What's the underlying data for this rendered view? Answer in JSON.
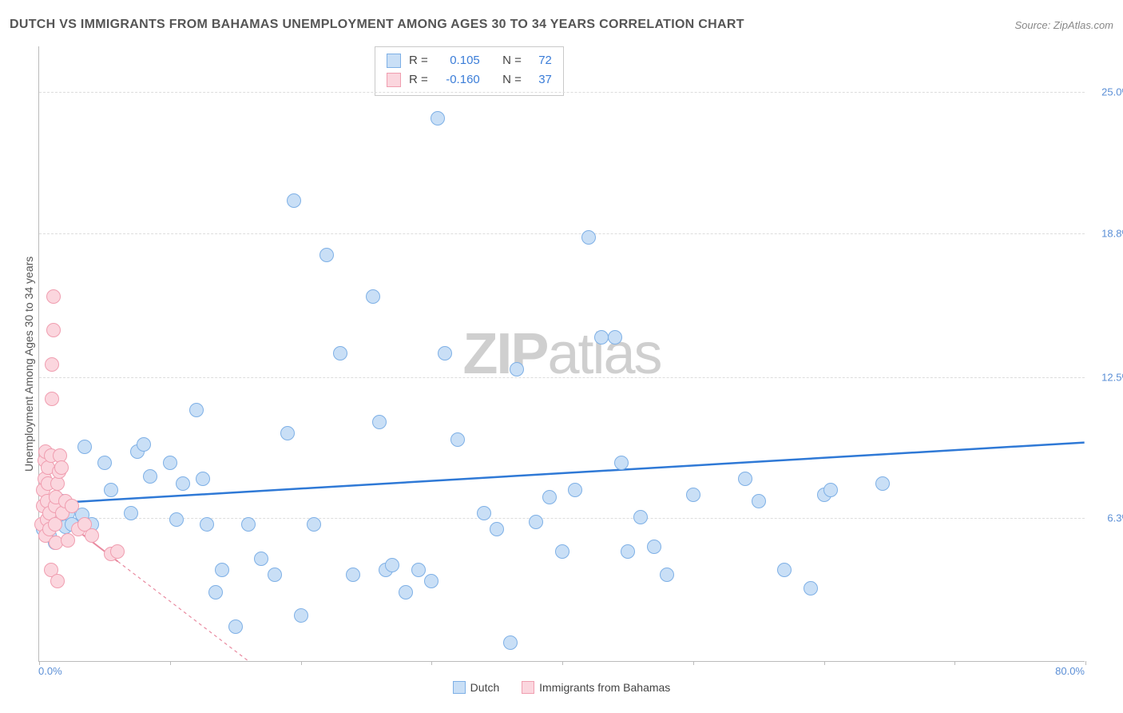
{
  "title": "DUTCH VS IMMIGRANTS FROM BAHAMAS UNEMPLOYMENT AMONG AGES 30 TO 34 YEARS CORRELATION CHART",
  "source": "Source: ZipAtlas.com",
  "watermark": {
    "bold": "ZIP",
    "rest": "atlas"
  },
  "y_axis_label": "Unemployment Among Ages 30 to 34 years",
  "chart": {
    "type": "scatter",
    "xlim": [
      0,
      80
    ],
    "ylim": [
      0,
      27
    ],
    "x_start_label": "0.0%",
    "x_end_label": "80.0%",
    "x_ticks": [
      0,
      10,
      20,
      30,
      40,
      50,
      60,
      70,
      80
    ],
    "y_gridlines": [
      {
        "val": 6.3,
        "label": "6.3%"
      },
      {
        "val": 12.5,
        "label": "12.5%"
      },
      {
        "val": 18.8,
        "label": "18.8%"
      },
      {
        "val": 25.0,
        "label": "25.0%"
      }
    ],
    "background_color": "#ffffff",
    "grid_color": "#dddddd",
    "point_radius": 9,
    "series": [
      {
        "name": "Dutch",
        "fill": "#c9dff6",
        "stroke": "#7eb0e6",
        "trend_color": "#2f79d6",
        "trend_width": 2.5,
        "trend_dash": "none",
        "r_value": "0.105",
        "n_value": "72",
        "trend": {
          "x1": 0,
          "y1": 6.9,
          "x2": 80,
          "y2": 9.6
        },
        "points": [
          [
            0.3,
            5.8
          ],
          [
            0.5,
            6.0
          ],
          [
            0.8,
            5.5
          ],
          [
            1.0,
            6.8
          ],
          [
            1.2,
            5.2
          ],
          [
            1.5,
            6.2
          ],
          [
            1.8,
            7.0
          ],
          [
            2.0,
            5.9
          ],
          [
            2.2,
            6.5
          ],
          [
            2.5,
            6.0
          ],
          [
            3.3,
            6.4
          ],
          [
            3.5,
            9.4
          ],
          [
            4.0,
            6.0
          ],
          [
            5.0,
            8.7
          ],
          [
            5.5,
            7.5
          ],
          [
            7.0,
            6.5
          ],
          [
            7.5,
            9.2
          ],
          [
            8.0,
            9.5
          ],
          [
            8.5,
            8.1
          ],
          [
            10.0,
            8.7
          ],
          [
            10.5,
            6.2
          ],
          [
            11.0,
            7.8
          ],
          [
            12.0,
            11.0
          ],
          [
            12.5,
            8.0
          ],
          [
            12.8,
            6.0
          ],
          [
            13.5,
            3.0
          ],
          [
            14.0,
            4.0
          ],
          [
            15.0,
            1.5
          ],
          [
            16.0,
            6.0
          ],
          [
            17.0,
            4.5
          ],
          [
            18.0,
            3.8
          ],
          [
            19.0,
            10.0
          ],
          [
            19.5,
            20.2
          ],
          [
            20.0,
            2.0
          ],
          [
            21.0,
            6.0
          ],
          [
            22.0,
            17.8
          ],
          [
            23.0,
            13.5
          ],
          [
            24.0,
            3.8
          ],
          [
            25.5,
            16.0
          ],
          [
            26.0,
            10.5
          ],
          [
            26.5,
            4.0
          ],
          [
            27.0,
            4.2
          ],
          [
            28.0,
            3.0
          ],
          [
            29.0,
            4.0
          ],
          [
            30.0,
            3.5
          ],
          [
            30.5,
            23.8
          ],
          [
            31.0,
            13.5
          ],
          [
            32.0,
            9.7
          ],
          [
            34.0,
            6.5
          ],
          [
            35.0,
            5.8
          ],
          [
            36.0,
            0.8
          ],
          [
            36.5,
            12.8
          ],
          [
            38.0,
            6.1
          ],
          [
            39.0,
            7.2
          ],
          [
            40.0,
            4.8
          ],
          [
            41.0,
            7.5
          ],
          [
            42.0,
            18.6
          ],
          [
            43.0,
            14.2
          ],
          [
            44.0,
            14.2
          ],
          [
            44.5,
            8.7
          ],
          [
            45.0,
            4.8
          ],
          [
            46.0,
            6.3
          ],
          [
            47.0,
            5.0
          ],
          [
            48.0,
            3.8
          ],
          [
            50.0,
            7.3
          ],
          [
            54.0,
            8.0
          ],
          [
            55.0,
            7.0
          ],
          [
            57.0,
            4.0
          ],
          [
            59.0,
            3.2
          ],
          [
            60.0,
            7.3
          ],
          [
            60.5,
            7.5
          ],
          [
            64.5,
            7.8
          ]
        ]
      },
      {
        "name": "Immigrants from Bahamas",
        "fill": "#fbd6de",
        "stroke": "#f09eb0",
        "trend_color": "#e98aa0",
        "trend_width": 2,
        "trend_dash": "4 4",
        "r_value": "-0.160",
        "n_value": "37",
        "trend": {
          "x1": 0,
          "y1": 7.0,
          "x2": 16,
          "y2": 0
        },
        "trend_solid_end_x": 6,
        "points": [
          [
            0.2,
            6.0
          ],
          [
            0.3,
            6.8
          ],
          [
            0.3,
            7.5
          ],
          [
            0.4,
            8.0
          ],
          [
            0.4,
            8.8
          ],
          [
            0.5,
            9.2
          ],
          [
            0.5,
            5.5
          ],
          [
            0.6,
            6.2
          ],
          [
            0.6,
            7.0
          ],
          [
            0.7,
            7.8
          ],
          [
            0.7,
            8.5
          ],
          [
            0.8,
            5.8
          ],
          [
            0.8,
            6.5
          ],
          [
            0.9,
            4.0
          ],
          [
            0.9,
            9.0
          ],
          [
            1.0,
            11.5
          ],
          [
            1.0,
            13.0
          ],
          [
            1.1,
            14.5
          ],
          [
            1.1,
            16.0
          ],
          [
            1.2,
            6.0
          ],
          [
            1.2,
            6.8
          ],
          [
            1.3,
            5.2
          ],
          [
            1.3,
            7.2
          ],
          [
            1.4,
            7.8
          ],
          [
            1.4,
            3.5
          ],
          [
            1.5,
            8.3
          ],
          [
            1.6,
            9.0
          ],
          [
            1.7,
            8.5
          ],
          [
            1.8,
            6.5
          ],
          [
            2.0,
            7.0
          ],
          [
            2.2,
            5.3
          ],
          [
            2.5,
            6.8
          ],
          [
            3.0,
            5.8
          ],
          [
            3.5,
            6.0
          ],
          [
            4.0,
            5.5
          ],
          [
            5.5,
            4.7
          ],
          [
            6.0,
            4.8
          ]
        ]
      }
    ]
  },
  "stats_legend": {
    "r_label": "R =",
    "n_label": "N ="
  },
  "bottom_legend": [
    {
      "label": "Dutch",
      "fill": "#c9dff6",
      "stroke": "#7eb0e6"
    },
    {
      "label": "Immigrants from Bahamas",
      "fill": "#fbd6de",
      "stroke": "#f09eb0"
    }
  ]
}
